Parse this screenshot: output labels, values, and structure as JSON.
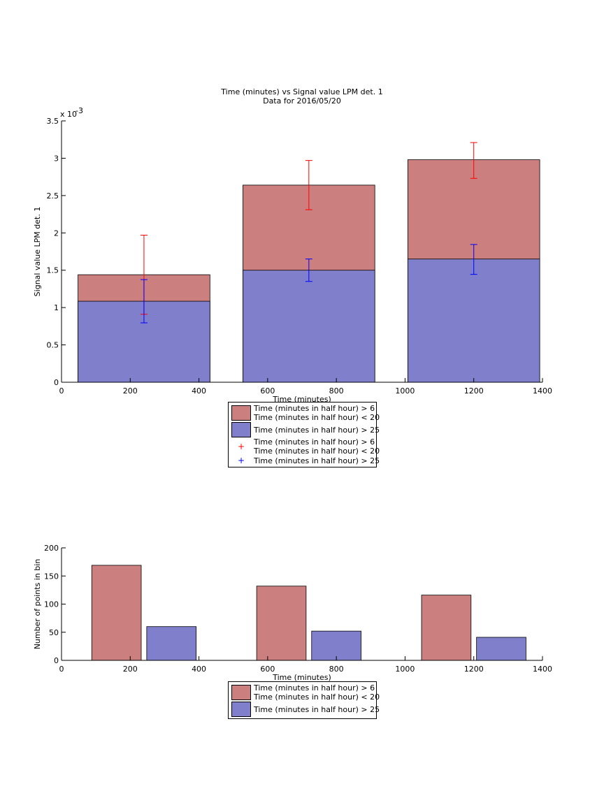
{
  "chart_data": [
    {
      "type": "bar",
      "barmode": "overlay",
      "title": "Time (minutes) vs Signal value LPM det. 1",
      "subtitle": "Data for 2016/05/20",
      "xlabel": "Time (minutes)",
      "ylabel": "Signal value LPM det. 1",
      "yscale_label": {
        "base": "x 10",
        "exponent": "-3"
      },
      "x": [
        240,
        720,
        1200
      ],
      "bar_width": 384,
      "xlim": [
        0,
        1400
      ],
      "xticks": [
        0,
        200,
        400,
        600,
        800,
        1000,
        1200,
        1400
      ],
      "ylim": [
        0,
        3.5
      ],
      "yticks": [
        0,
        0.5,
        1,
        1.5,
        2,
        2.5,
        3,
        3.5
      ],
      "series": [
        {
          "name": "Time (minutes in half hour) > 6\nTime (minutes in half hour) < 20",
          "color": "#cc7f7f",
          "values": [
            1.44,
            2.64,
            2.98
          ]
        },
        {
          "name": "Time (minutes in half hour) > 25",
          "color": "#7f7fcc",
          "values": [
            1.085,
            1.5,
            1.65
          ]
        }
      ],
      "errorbar_series": [
        {
          "name": "Time (minutes in half hour) > 6\nTime (minutes in half hour) < 20",
          "color": "#ff0000",
          "marker": "+",
          "values": [
            1.44,
            2.64,
            2.97
          ],
          "errors": [
            0.53,
            0.33,
            0.24
          ]
        },
        {
          "name": "Time (minutes in half hour) > 25",
          "color": "#0000ff",
          "marker": "+",
          "values": [
            1.085,
            1.5,
            1.645
          ],
          "errors": [
            0.29,
            0.15,
            0.2
          ]
        }
      ]
    },
    {
      "type": "bar",
      "barmode": "grouped",
      "xlabel": "Time (minutes)",
      "ylabel": "Number of points in bin",
      "x": [
        240,
        720,
        1200
      ],
      "bar_width": 144,
      "group_offset": 80,
      "xlim": [
        0,
        1400
      ],
      "xticks": [
        0,
        200,
        400,
        600,
        800,
        1000,
        1200,
        1400
      ],
      "ylim": [
        0,
        200
      ],
      "yticks": [
        0,
        50,
        100,
        150,
        200
      ],
      "series": [
        {
          "name": "Time (minutes in half hour) > 6\nTime (minutes in half hour) < 20",
          "color": "#cc7f7f",
          "values": [
            169,
            132,
            116
          ]
        },
        {
          "name": "Time (minutes in half hour) > 25",
          "color": "#7f7fcc",
          "values": [
            60,
            52,
            41
          ]
        }
      ]
    }
  ]
}
